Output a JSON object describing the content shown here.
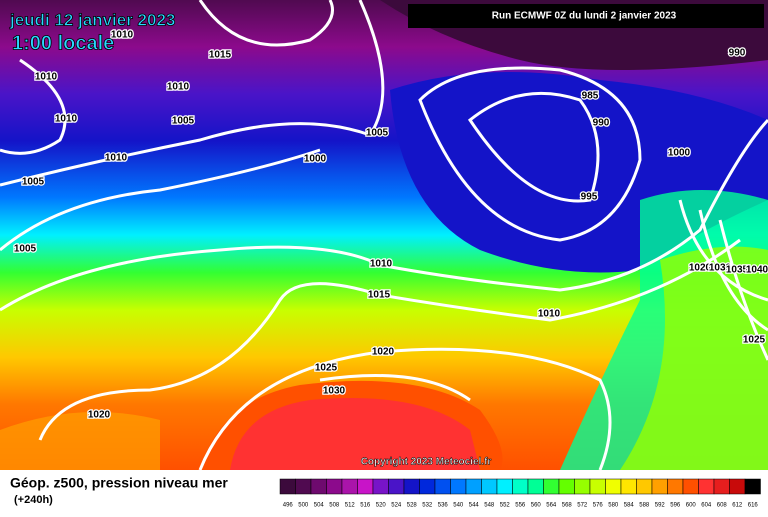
{
  "header": {
    "date": "jeudi 12 janvier 2023",
    "time": "1:00 locale",
    "run": "Run ECMWF 0Z du lundi 2 janvier 2023"
  },
  "isobar_labels": [
    1015,
    1010,
    1010,
    1010,
    1010,
    1005,
    1010,
    1005,
    1005,
    1000,
    985,
    990,
    990,
    1000,
    995,
    1005,
    1010,
    1015,
    1010,
    1020,
    1030,
    1035,
    1040,
    1025,
    1020,
    1025,
    1030,
    1020
  ],
  "copyright": "Copyright 2023 Meteociel.fr",
  "footer": {
    "title": "Géop. z500, pression niveau mer",
    "lead": "(+240h)"
  },
  "legend": {
    "values": [
      496,
      500,
      504,
      508,
      512,
      516,
      520,
      524,
      528,
      532,
      536,
      540,
      544,
      548,
      552,
      556,
      560,
      564,
      568,
      572,
      576,
      580,
      584,
      588,
      592,
      596,
      600,
      604,
      608,
      612,
      616
    ],
    "colors": [
      "#3c0a3c",
      "#500a50",
      "#6e0a6e",
      "#8c0a8c",
      "#aa14aa",
      "#c814c8",
      "#7814c8",
      "#4a14c8",
      "#1414c8",
      "#0028dc",
      "#0050f0",
      "#0078ff",
      "#00a0ff",
      "#00c8ff",
      "#00f0ff",
      "#00ffc8",
      "#00ff96",
      "#32ff32",
      "#64ff00",
      "#96ff00",
      "#c8ff00",
      "#f0ff00",
      "#ffe600",
      "#ffc800",
      "#ffa000",
      "#ff7800",
      "#ff5000",
      "#ff3232",
      "#e61e1e",
      "#c80a0a",
      "#000000"
    ]
  }
}
